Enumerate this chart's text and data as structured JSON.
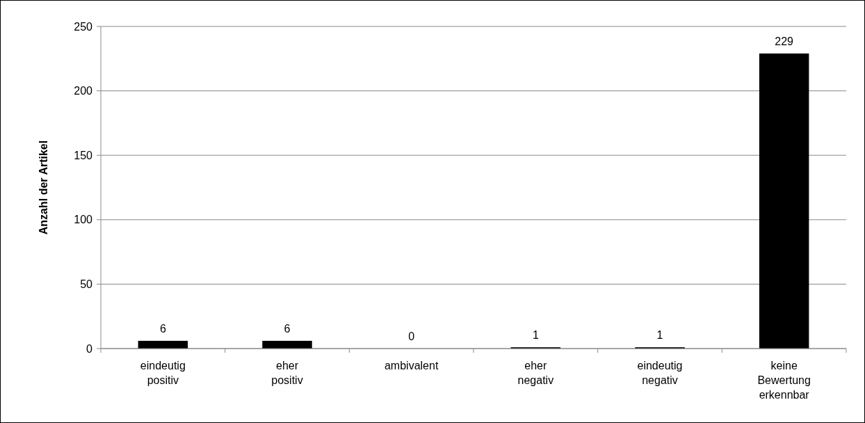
{
  "chart_data": {
    "type": "bar",
    "ylabel": "Anzahl der Artikel",
    "categories": [
      "eindeutig positiv",
      "eher positiv",
      "ambivalent",
      "eher negativ",
      "eindeutig negativ",
      "keine Bewertung erkennbar"
    ],
    "values": [
      6,
      6,
      0,
      1,
      1,
      229
    ],
    "color": "#000000",
    "ylim": [
      0,
      250
    ],
    "yticks": [
      0,
      50,
      100,
      150,
      200,
      250
    ],
    "grid": "y",
    "data_labels": true
  }
}
